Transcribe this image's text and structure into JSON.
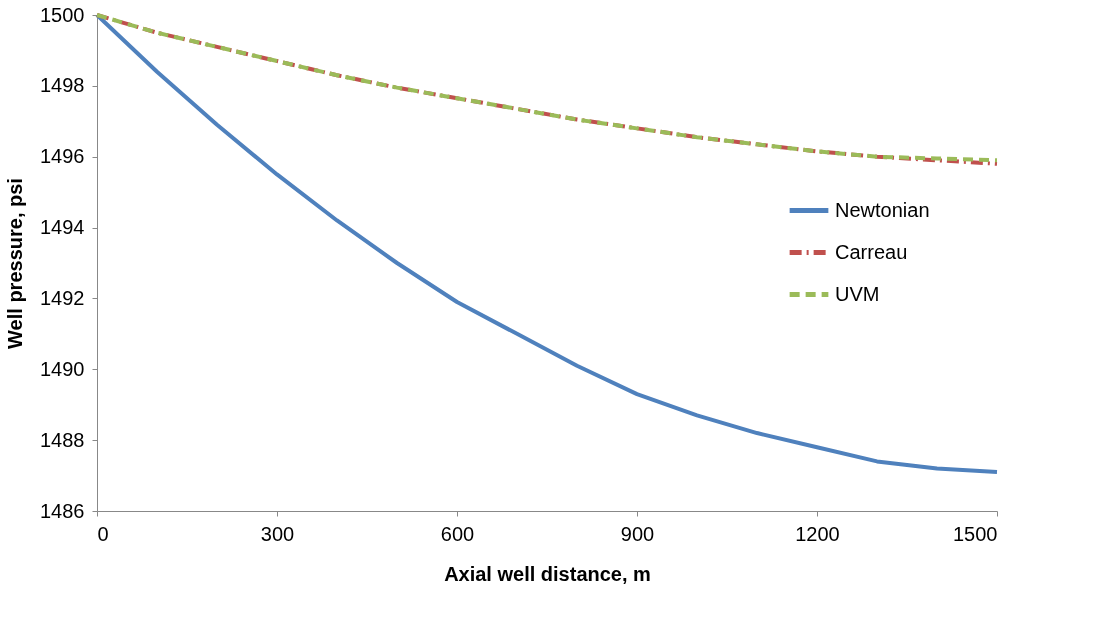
{
  "chart_data": {
    "type": "line",
    "xlabel": "Axial well distance, m",
    "ylabel": "Well pressure, psi",
    "x": [
      0,
      100,
      200,
      300,
      400,
      500,
      600,
      700,
      800,
      900,
      1000,
      1100,
      1200,
      1300,
      1400,
      1500
    ],
    "series": [
      {
        "name": "Newtonian",
        "color": "#4f81bd",
        "line_style": "solid",
        "values": [
          1500,
          1498.4,
          1496.9,
          1495.5,
          1494.2,
          1493.0,
          1491.9,
          1491.0,
          1490.1,
          1489.3,
          1488.7,
          1488.2,
          1487.8,
          1487.4,
          1487.2,
          1487.1
        ]
      },
      {
        "name": "Carreau",
        "color": "#c0504d",
        "line_style": "dashdot",
        "values": [
          1500,
          1499.5,
          1499.1,
          1498.7,
          1498.3,
          1497.95,
          1497.65,
          1497.35,
          1497.05,
          1496.8,
          1496.55,
          1496.35,
          1496.15,
          1496.0,
          1495.9,
          1495.8
        ]
      },
      {
        "name": "UVM",
        "color": "#9bbb59",
        "line_style": "dashed",
        "values": [
          1500,
          1499.5,
          1499.1,
          1498.7,
          1498.3,
          1497.95,
          1497.65,
          1497.35,
          1497.05,
          1496.8,
          1496.55,
          1496.35,
          1496.15,
          1496.0,
          1495.95,
          1495.9
        ]
      }
    ],
    "xlim": [
      0,
      1500
    ],
    "xticks": [
      0,
      300,
      600,
      900,
      1200,
      1500
    ],
    "ylim": [
      1486,
      1500
    ],
    "yticks": [
      1486,
      1488,
      1490,
      1492,
      1494,
      1496,
      1498,
      1500
    ],
    "grid": false,
    "legend": "right",
    "marker": "none"
  }
}
